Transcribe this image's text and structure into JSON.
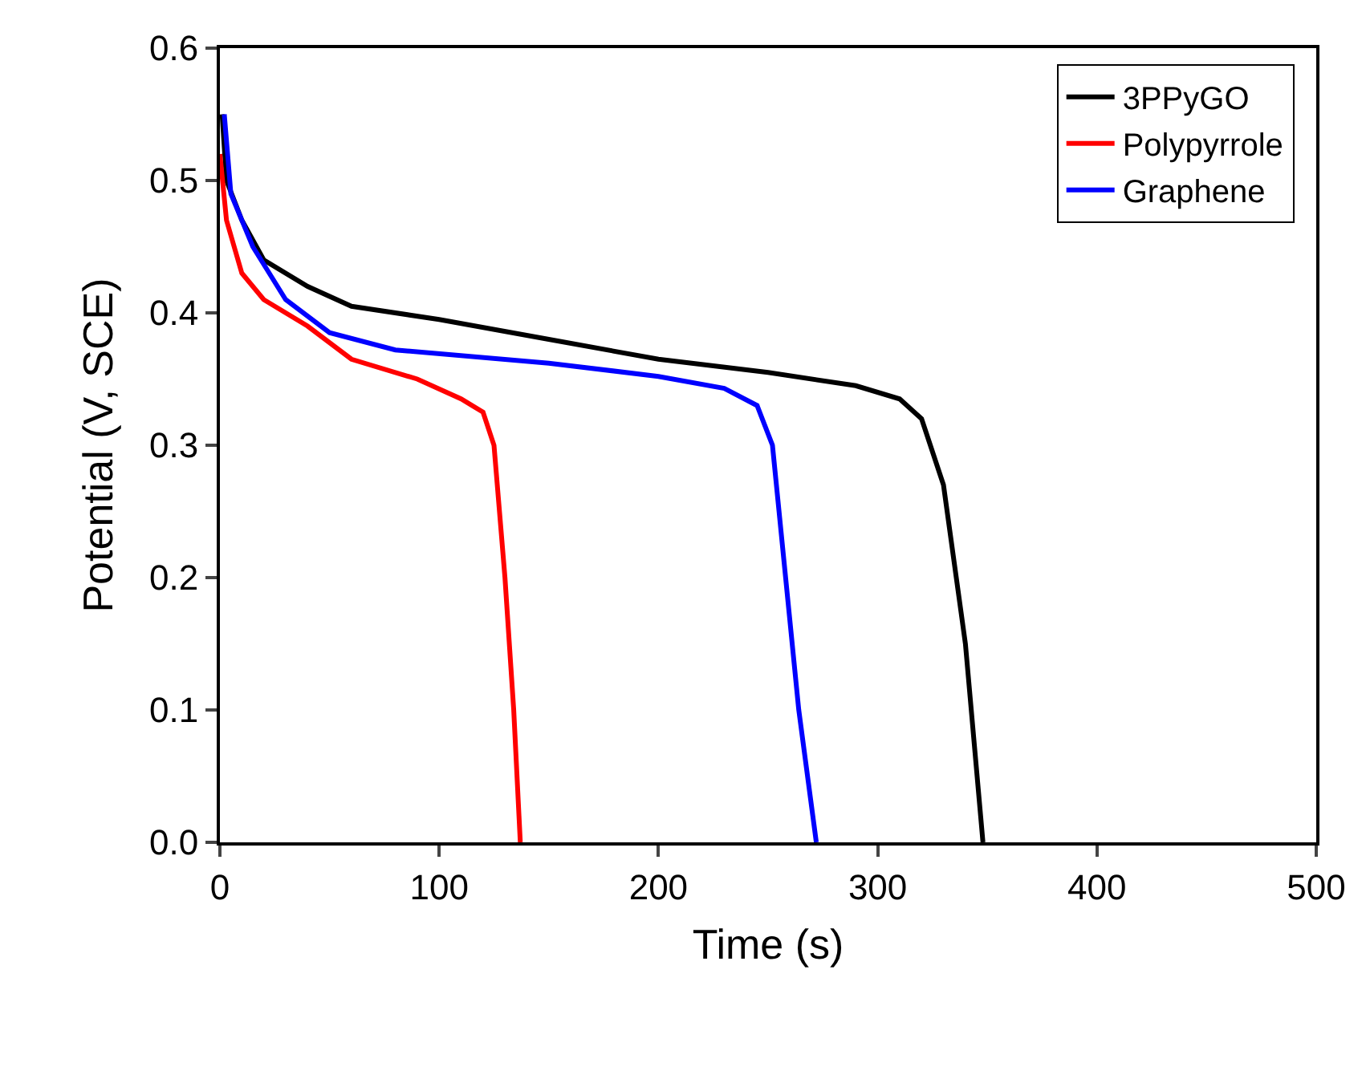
{
  "chart_data": {
    "type": "line",
    "xlabel": "Time (s)",
    "ylabel": "Potential (V, SCE)",
    "xlim": [
      0,
      500
    ],
    "xticks": [
      0,
      100,
      200,
      300,
      400,
      500
    ],
    "ylim": [
      0,
      0.6
    ],
    "yticks": [
      {
        "value": 0,
        "label": "0.0"
      },
      0.1,
      0.2,
      0.3,
      0.4,
      0.5,
      0.6
    ],
    "grid": false,
    "legend": "top right",
    "marker": "none",
    "line_style": "solid",
    "series": [
      {
        "name": "3PPyGO",
        "color": "#000000",
        "x": [
          1,
          3,
          10,
          20,
          40,
          60,
          100,
          150,
          200,
          250,
          290,
          310,
          320,
          330,
          340,
          348
        ],
        "values": [
          0.55,
          0.5,
          0.47,
          0.44,
          0.42,
          0.405,
          0.395,
          0.38,
          0.365,
          0.355,
          0.345,
          0.335,
          0.32,
          0.27,
          0.15,
          0
        ]
      },
      {
        "name": "Polypyrrole",
        "color": "#ff0000",
        "x": [
          0,
          3,
          10,
          20,
          40,
          60,
          90,
          110,
          120,
          125,
          130,
          134,
          137
        ],
        "values": [
          0.52,
          0.47,
          0.43,
          0.41,
          0.39,
          0.365,
          0.35,
          0.335,
          0.325,
          0.3,
          0.2,
          0.1,
          0
        ]
      },
      {
        "name": "Graphene",
        "color": "#0000ff",
        "x": [
          2,
          5,
          15,
          30,
          50,
          80,
          150,
          200,
          230,
          245,
          252,
          258,
          264,
          272
        ],
        "values": [
          0.55,
          0.49,
          0.45,
          0.41,
          0.385,
          0.372,
          0.362,
          0.352,
          0.343,
          0.33,
          0.3,
          0.2,
          0.1,
          0
        ]
      }
    ]
  }
}
